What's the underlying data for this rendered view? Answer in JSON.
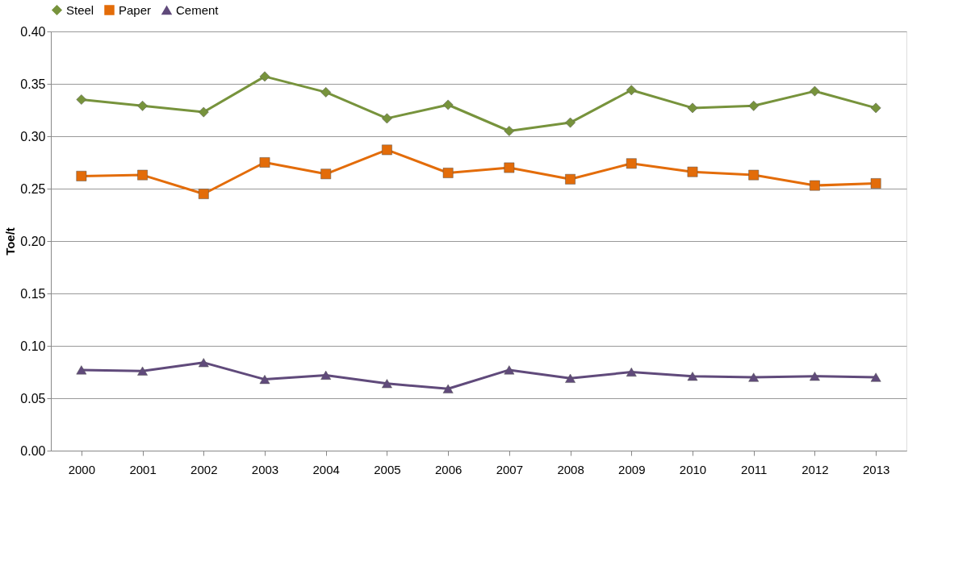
{
  "chart_data": {
    "type": "line",
    "ylabel": "Toe/t",
    "categories": [
      "2000",
      "2001",
      "2002",
      "2003",
      "2004",
      "2005",
      "2006",
      "2007",
      "2008",
      "2009",
      "2010",
      "2011",
      "2012",
      "2013"
    ],
    "series": [
      {
        "name": "Steel",
        "color": "#77933c",
        "marker": "diamond",
        "values": [
          0.335,
          0.329,
          0.323,
          0.357,
          0.342,
          0.317,
          0.33,
          0.305,
          0.313,
          0.344,
          0.327,
          0.329,
          0.343,
          0.327
        ]
      },
      {
        "name": "Paper",
        "color": "#e36c09",
        "marker": "square",
        "values": [
          0.262,
          0.263,
          0.245,
          0.275,
          0.264,
          0.287,
          0.265,
          0.27,
          0.259,
          0.274,
          0.266,
          0.263,
          0.253,
          0.255
        ]
      },
      {
        "name": "Cement",
        "color": "#604a7b",
        "marker": "triangle",
        "values": [
          0.077,
          0.076,
          0.084,
          0.068,
          0.072,
          0.064,
          0.059,
          0.077,
          0.069,
          0.075,
          0.071,
          0.07,
          0.071,
          0.07
        ]
      }
    ],
    "ylim": [
      0,
      0.4
    ],
    "yticks": [
      {
        "value": 0,
        "label": "0.00"
      },
      {
        "value": 0.05,
        "label": "0.05"
      },
      {
        "value": 0.1,
        "label": "0.10"
      },
      {
        "value": 0.15,
        "label": "0.15"
      },
      {
        "value": 0.2,
        "label": "0.20"
      },
      {
        "value": 0.25,
        "label": "0.25"
      },
      {
        "value": 0.3,
        "label": "0.30"
      },
      {
        "value": 0.35,
        "label": "0.35"
      },
      {
        "value": 0.4,
        "label": "0.40"
      }
    ],
    "grid": "y",
    "legend": "top",
    "line_style": "solid"
  }
}
